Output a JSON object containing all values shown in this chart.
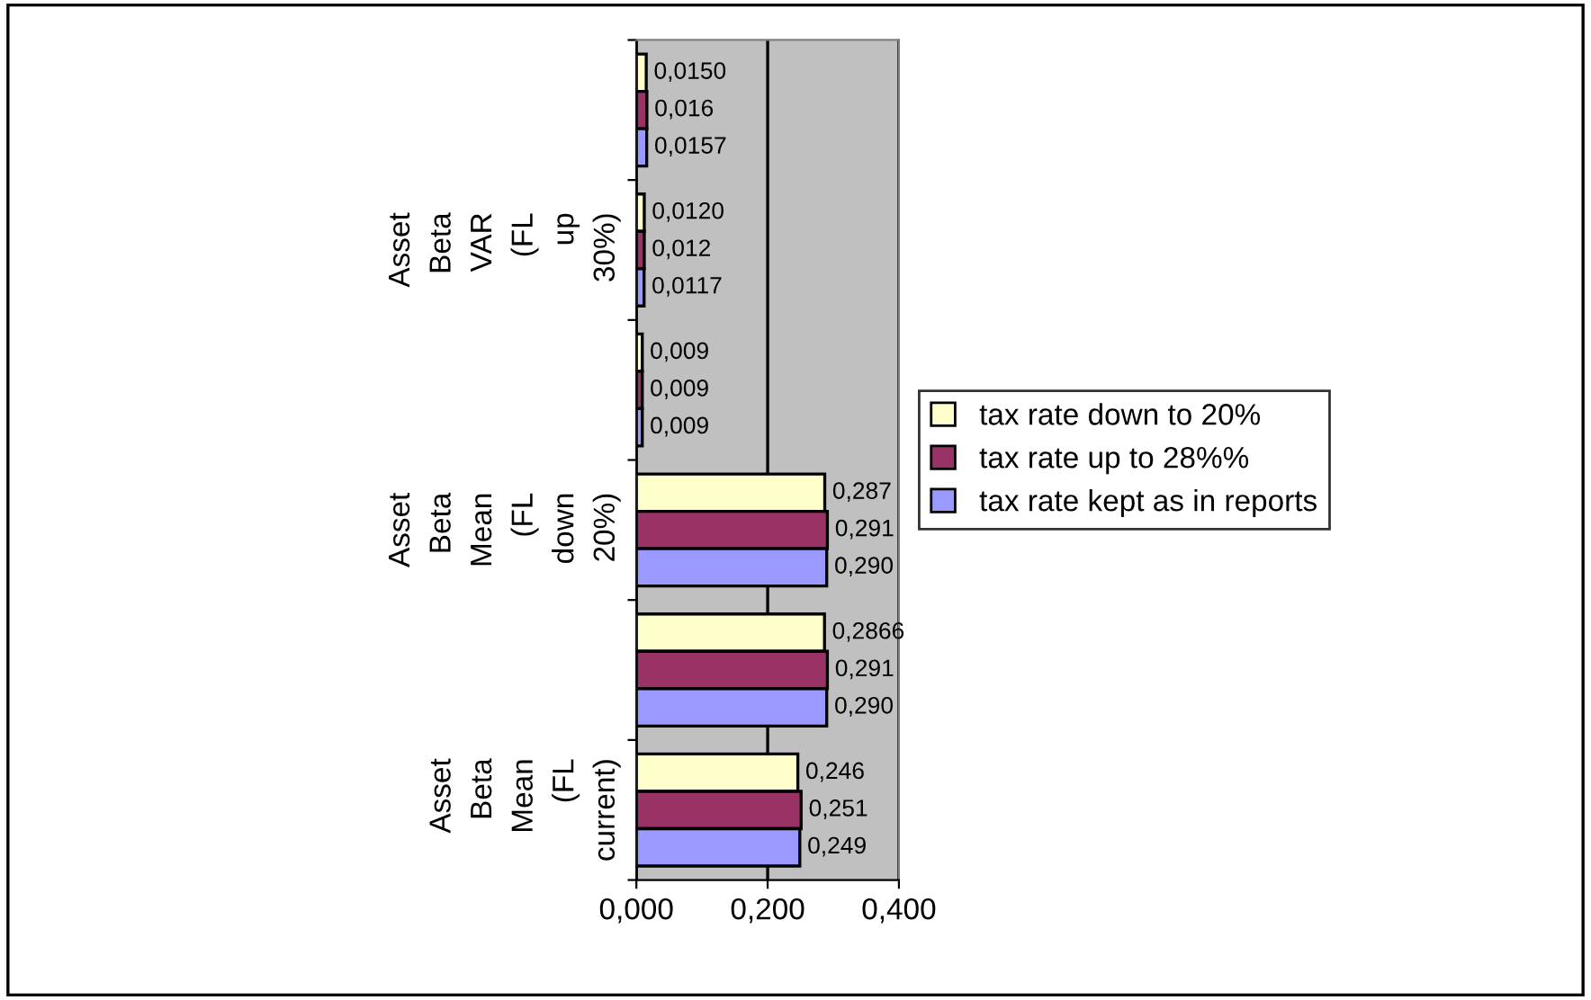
{
  "chart_data": {
    "type": "bar",
    "orientation": "horizontal",
    "categories": [
      null,
      "Asset Beta VAR (FL up 30%)",
      null,
      "Asset Beta Mean (FL down 20%)",
      null,
      "Asset Beta Mean (FL current)"
    ],
    "series": [
      {
        "name": "tax rate down to 20%",
        "color": "#ffffcc",
        "values": [
          0.015,
          0.012,
          0.009,
          0.287,
          0.2866,
          0.246
        ],
        "value_labels": [
          "0,0150",
          "0,0120",
          "0,009",
          "0,287",
          "0,2866",
          "0,246"
        ]
      },
      {
        "name": "tax rate up to 28%%",
        "color": "#993366",
        "values": [
          0.016,
          0.012,
          0.009,
          0.291,
          0.291,
          0.251
        ],
        "value_labels": [
          "0,016",
          "0,012",
          "0,009",
          "0,291",
          "0,291",
          "0,251"
        ]
      },
      {
        "name": "tax rate kept as in reports",
        "color": "#9999ff",
        "values": [
          0.0157,
          0.0117,
          0.009,
          0.29,
          0.29,
          0.249
        ],
        "value_labels": [
          "0,0157",
          "0,0117",
          "0,009",
          "0,290",
          "0,290",
          "0,249"
        ]
      }
    ],
    "xlim": [
      0,
      0.4
    ],
    "xticks": [
      {
        "value": 0,
        "label": "0,000"
      },
      {
        "value": 0.2,
        "label": "0,200"
      },
      {
        "value": 0.4,
        "label": "0,400"
      }
    ],
    "grid": "x",
    "legend": "right"
  }
}
